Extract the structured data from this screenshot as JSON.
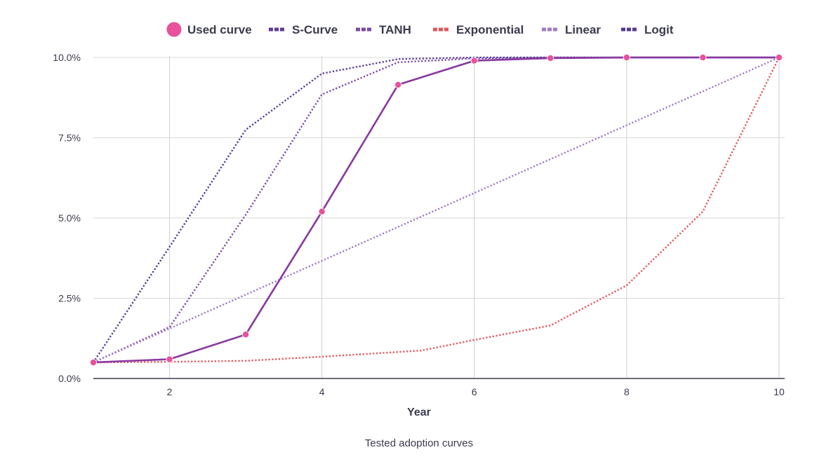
{
  "chart_data": {
    "type": "line",
    "xlabel": "Year",
    "caption": "Tested adoption curves",
    "xlim": [
      1,
      10
    ],
    "ylim": [
      0,
      10
    ],
    "x_ticks": [
      2,
      4,
      6,
      8,
      10
    ],
    "y_ticks": [
      0,
      2.5,
      5,
      7.5,
      10
    ],
    "y_tick_labels": [
      "0.0%",
      "2.5%",
      "5.0%",
      "7.5%",
      "10.0%"
    ],
    "grid": true,
    "legend_position": "top-center",
    "series": [
      {
        "name": "S-Curve",
        "color": "#5e3c96",
        "style": "dotted",
        "x": [
          1,
          2,
          3,
          4,
          5,
          6,
          7,
          8,
          9,
          10
        ],
        "y": [
          0.5,
          0.6,
          1.37,
          5.2,
          9.15,
          9.9,
          9.98,
          10.0,
          10.0,
          10.0
        ]
      },
      {
        "name": "TANH",
        "color": "#7b4aaa",
        "style": "dotted",
        "x": [
          1,
          2,
          3,
          4,
          5,
          6,
          7,
          8,
          9,
          10
        ],
        "y": [
          0.5,
          1.6,
          5.1,
          8.85,
          9.85,
          9.97,
          10.0,
          10.0,
          10.0,
          10.0
        ]
      },
      {
        "name": "Exponential",
        "color": "#e55658",
        "style": "dotted",
        "x": [
          1,
          2,
          3,
          4,
          5.3,
          6,
          7,
          8,
          9,
          10
        ],
        "y": [
          0.5,
          0.52,
          0.55,
          0.68,
          0.87,
          1.2,
          1.65,
          2.9,
          5.2,
          10.0
        ]
      },
      {
        "name": "Linear",
        "color": "#a27bc6",
        "style": "dotted",
        "x": [
          1,
          10
        ],
        "y": [
          0.5,
          10.0
        ]
      },
      {
        "name": "Logit",
        "color": "#563995",
        "style": "dotted",
        "x": [
          1,
          2,
          3,
          4,
          5,
          6,
          7,
          8,
          9,
          10
        ],
        "y": [
          0.5,
          4.1,
          7.75,
          9.5,
          9.95,
          10.0,
          10.0,
          10.0,
          10.0,
          10.0
        ]
      },
      {
        "name": "Used curve",
        "color": "#e8519b",
        "style": "solid",
        "line_color": "#8a3aa0",
        "markers": true,
        "x": [
          1,
          2,
          3,
          4,
          5,
          6,
          7,
          8,
          9,
          10
        ],
        "y": [
          0.5,
          0.6,
          1.37,
          5.2,
          9.15,
          9.9,
          9.98,
          10.0,
          10.0,
          10.0
        ]
      }
    ],
    "legend": [
      {
        "name": "Used curve",
        "color": "#e8519b",
        "symbol": "circle"
      },
      {
        "name": "S-Curve",
        "color": "#5e3c96",
        "symbol": "dash"
      },
      {
        "name": "TANH",
        "color": "#7b4aaa",
        "symbol": "dash"
      },
      {
        "name": "Exponential",
        "color": "#e55658",
        "symbol": "dash"
      },
      {
        "name": "Linear",
        "color": "#a27bc6",
        "symbol": "dash"
      },
      {
        "name": "Logit",
        "color": "#563995",
        "symbol": "dash"
      }
    ]
  }
}
